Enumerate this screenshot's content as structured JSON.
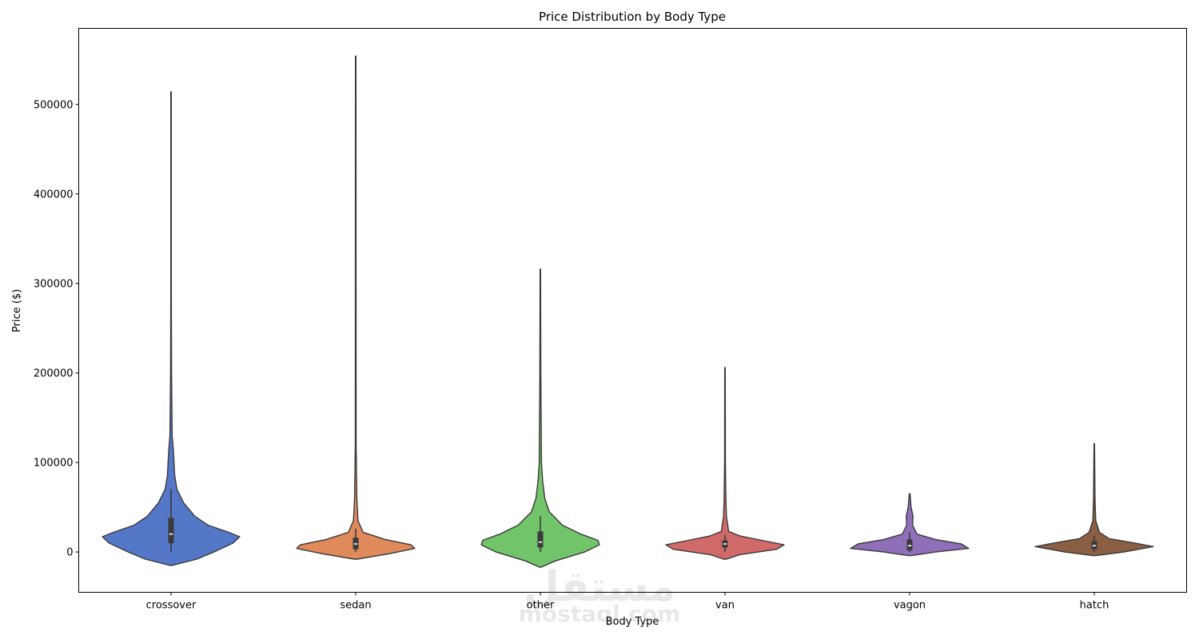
{
  "chart_data": {
    "type": "violin",
    "title": "Price Distribution by Body Type",
    "xlabel": "Body Type",
    "ylabel": "Price ($)",
    "ylim": [
      -45000,
      585000
    ],
    "yticks": [
      0,
      100000,
      200000,
      300000,
      400000,
      500000
    ],
    "ytick_labels": [
      "0",
      "100000",
      "200000",
      "300000",
      "400000",
      "500000"
    ],
    "grid": false,
    "legend": "none",
    "categories": [
      "crossover",
      "sedan",
      "other",
      "van",
      "vagon",
      "hatch"
    ],
    "violins": [
      {
        "name": "crossover",
        "color": "#5577c8",
        "min": 0,
        "q1": 10000,
        "median": 20000,
        "q3": 38000,
        "whisker_high": 70000,
        "max": 514000,
        "kde_low": -15000,
        "profile": [
          [
            -15000,
            0.01
          ],
          [
            -8000,
            0.35
          ],
          [
            0,
            0.58
          ],
          [
            10000,
            0.84
          ],
          [
            17000,
            0.93
          ],
          [
            22000,
            0.78
          ],
          [
            30000,
            0.5
          ],
          [
            40000,
            0.32
          ],
          [
            55000,
            0.17
          ],
          [
            70000,
            0.08
          ],
          [
            85000,
            0.05
          ],
          [
            100000,
            0.04
          ],
          [
            115000,
            0.03
          ],
          [
            130000,
            0.015
          ],
          [
            200000,
            0.006
          ],
          [
            300000,
            0.003
          ],
          [
            514000,
            0.003
          ]
        ]
      },
      {
        "name": "sedan",
        "color": "#e08a5b",
        "min": 0,
        "q1": 3000,
        "median": 9000,
        "q3": 16000,
        "whisker_high": 26000,
        "max": 554000,
        "kde_low": -8000,
        "profile": [
          [
            -8000,
            0.02
          ],
          [
            -2000,
            0.45
          ],
          [
            4000,
            0.8
          ],
          [
            8000,
            0.75
          ],
          [
            14000,
            0.4
          ],
          [
            22000,
            0.1
          ],
          [
            35000,
            0.03
          ],
          [
            60000,
            0.015
          ],
          [
            120000,
            0.005
          ],
          [
            554000,
            0.003
          ]
        ]
      },
      {
        "name": "other",
        "color": "#72c46a",
        "min": 0,
        "q1": 5000,
        "median": 11000,
        "q3": 23000,
        "whisker_high": 40000,
        "max": 316000,
        "kde_low": -17000,
        "profile": [
          [
            -17000,
            0.01
          ],
          [
            -10000,
            0.2
          ],
          [
            0,
            0.6
          ],
          [
            8000,
            0.8
          ],
          [
            13000,
            0.78
          ],
          [
            20000,
            0.55
          ],
          [
            30000,
            0.3
          ],
          [
            45000,
            0.12
          ],
          [
            60000,
            0.06
          ],
          [
            80000,
            0.03
          ],
          [
            100000,
            0.015
          ],
          [
            200000,
            0.006
          ],
          [
            316000,
            0.003
          ]
        ]
      },
      {
        "name": "van",
        "color": "#cf6a68",
        "min": 0,
        "q1": 5000,
        "median": 9000,
        "q3": 13000,
        "whisker_high": 19000,
        "max": 206000,
        "kde_low": -8000,
        "profile": [
          [
            -8000,
            0.02
          ],
          [
            -3000,
            0.2
          ],
          [
            3000,
            0.7
          ],
          [
            8000,
            0.8
          ],
          [
            13000,
            0.5
          ],
          [
            18000,
            0.2
          ],
          [
            23000,
            0.05
          ],
          [
            40000,
            0.02
          ],
          [
            60000,
            0.012
          ],
          [
            100000,
            0.005
          ],
          [
            206000,
            0.003
          ]
        ]
      },
      {
        "name": "vagon",
        "color": "#8f6fb8",
        "min": 0,
        "q1": 2000,
        "median": 7000,
        "q3": 14000,
        "whisker_high": 22000,
        "max": 65000,
        "kde_low": -4000,
        "profile": [
          [
            -4000,
            0.02
          ],
          [
            0,
            0.35
          ],
          [
            4000,
            0.8
          ],
          [
            9000,
            0.7
          ],
          [
            14000,
            0.35
          ],
          [
            20000,
            0.1
          ],
          [
            30000,
            0.04
          ],
          [
            40000,
            0.045
          ],
          [
            50000,
            0.02
          ],
          [
            65000,
            0.005
          ]
        ]
      },
      {
        "name": "hatch",
        "color": "#8a5f43",
        "min": 0,
        "q1": 3000,
        "median": 7000,
        "q3": 12000,
        "whisker_high": 18000,
        "max": 121000,
        "kde_low": -4000,
        "profile": [
          [
            -4000,
            0.02
          ],
          [
            0,
            0.4
          ],
          [
            6000,
            0.8
          ],
          [
            10000,
            0.55
          ],
          [
            15000,
            0.2
          ],
          [
            22000,
            0.07
          ],
          [
            35000,
            0.02
          ],
          [
            60000,
            0.01
          ],
          [
            121000,
            0.003
          ]
        ]
      }
    ]
  },
  "watermark": {
    "arabic": "مستقل",
    "latin": "mostaql.com"
  }
}
